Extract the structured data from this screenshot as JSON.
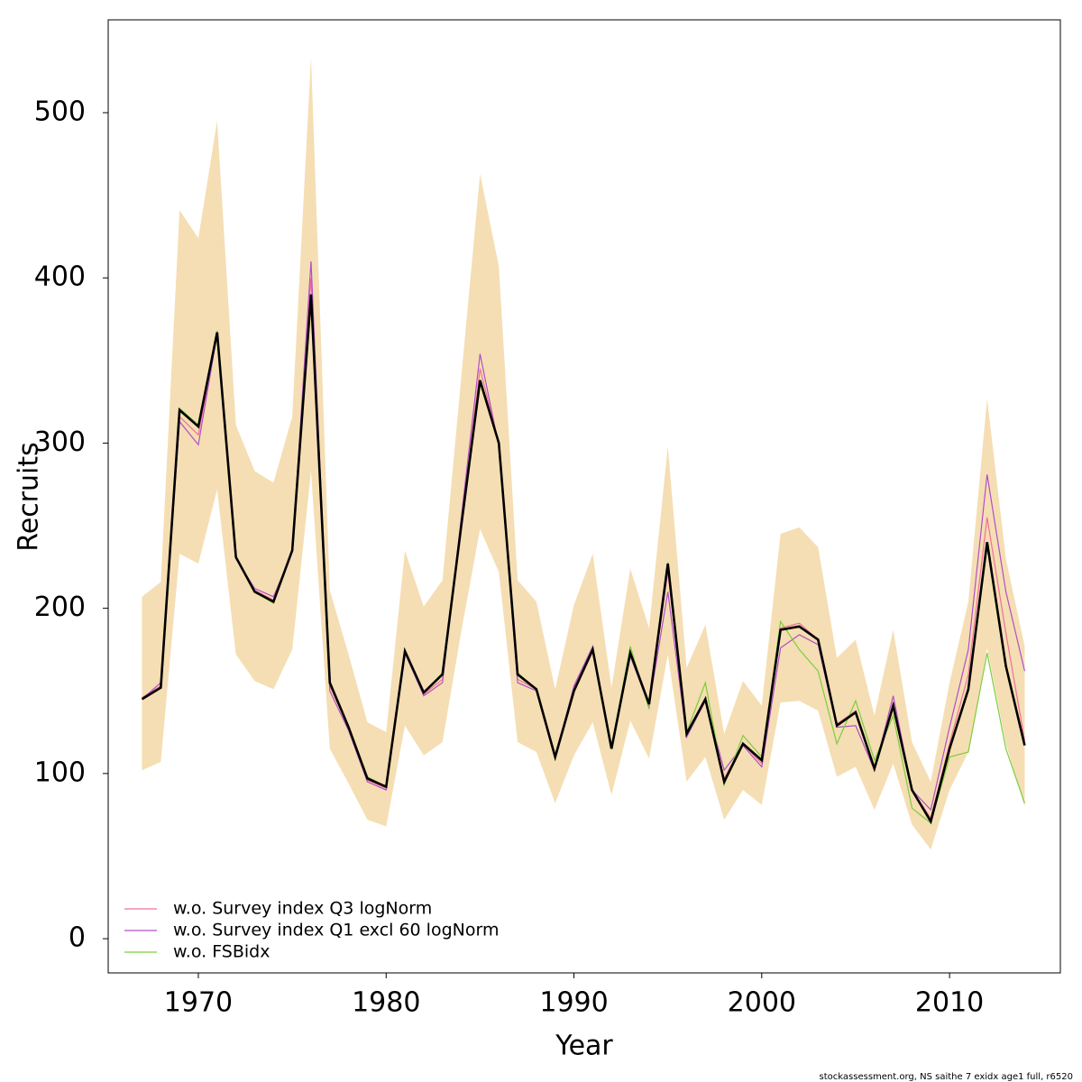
{
  "chart_data": {
    "type": "line",
    "xlabel": "Year",
    "ylabel": "Recruits",
    "footer": "stockassessment.org, NS saithe 7 exidx age1 full, r6520",
    "x": [
      1967,
      1968,
      1969,
      1970,
      1971,
      1972,
      1973,
      1974,
      1975,
      1976,
      1977,
      1978,
      1979,
      1980,
      1981,
      1982,
      1983,
      1984,
      1985,
      1986,
      1987,
      1988,
      1989,
      1990,
      1991,
      1992,
      1993,
      1994,
      1995,
      1996,
      1997,
      1998,
      1999,
      2000,
      2001,
      2002,
      2003,
      2004,
      2005,
      2006,
      2007,
      2008,
      2009,
      2010,
      2011,
      2012,
      2013,
      2014
    ],
    "band": {
      "color": "#f5deb3",
      "upper": [
        207,
        216,
        441,
        424,
        495,
        311,
        283,
        276,
        316,
        534,
        211,
        172,
        131,
        125,
        235,
        201,
        217,
        340,
        463,
        407,
        217,
        204,
        151,
        202,
        233,
        152,
        224,
        188,
        298,
        164,
        190,
        124,
        156,
        141,
        245,
        249,
        237,
        170,
        181,
        135,
        187,
        119,
        95,
        155,
        204,
        327,
        230,
        177
      ],
      "lower": [
        102,
        107,
        233,
        227,
        272,
        172,
        156,
        151,
        175,
        283,
        115,
        94,
        72,
        68,
        129,
        111,
        119,
        186,
        248,
        222,
        119,
        113,
        82,
        111,
        131,
        87,
        132,
        109,
        172,
        95,
        110,
        72,
        90,
        81,
        143,
        144,
        138,
        98,
        104,
        78,
        106,
        69,
        54,
        90,
        113,
        176,
        118,
        80
      ]
    },
    "estimate": {
      "color": "#000000",
      "values": [
        145,
        152,
        320,
        310,
        367,
        231,
        210,
        204,
        235,
        390,
        155,
        128,
        97,
        92,
        174,
        149,
        160,
        250,
        338,
        300,
        160,
        151,
        110,
        150,
        175,
        115,
        173,
        142,
        227,
        124,
        145,
        95,
        118,
        108,
        187,
        189,
        181,
        129,
        137,
        103,
        141,
        90,
        71,
        115,
        151,
        240,
        165,
        117
      ]
    },
    "series": [
      {
        "name": "w.o. Survey index Q3 logNorm",
        "color": "#f0709a",
        "values": [
          146,
          153,
          316,
          305,
          366,
          231,
          211,
          205,
          235,
          400,
          153,
          128,
          96,
          91,
          174,
          148,
          157,
          252,
          345,
          300,
          157,
          151,
          110,
          152,
          176,
          115,
          172,
          142,
          222,
          124,
          146,
          97,
          118,
          106,
          188,
          191,
          181,
          130,
          138,
          103,
          143,
          90,
          73,
          118,
          160,
          255,
          185,
          120
        ]
      },
      {
        "name": "w.o. Survey index Q1 excl 60 logNorm",
        "color": "#b050c8",
        "values": [
          145,
          155,
          313,
          299,
          366,
          230,
          212,
          207,
          234,
          410,
          150,
          126,
          95,
          90,
          173,
          147,
          155,
          255,
          354,
          298,
          155,
          150,
          110,
          153,
          177,
          115,
          171,
          141,
          210,
          122,
          144,
          102,
          117,
          104,
          176,
          184,
          178,
          128,
          129,
          102,
          147,
          90,
          78,
          128,
          175,
          281,
          210,
          162
        ]
      },
      {
        "name": "w.o. FSBidx",
        "color": "#7ccd3c",
        "values": [
          145,
          152,
          321,
          311,
          368,
          231,
          210,
          203,
          235,
          388,
          156,
          128,
          98,
          92,
          175,
          149,
          161,
          249,
          336,
          300,
          161,
          151,
          111,
          150,
          176,
          116,
          177,
          139,
          228,
          125,
          155,
          93,
          123,
          110,
          192,
          175,
          162,
          118,
          144,
          108,
          135,
          79,
          70,
          110,
          113,
          173,
          115,
          82
        ]
      }
    ],
    "xlim": [
      1965.2,
      2015.9
    ],
    "ylim": [
      -20.7,
      556.2
    ],
    "xticks": [
      1970,
      1980,
      1990,
      2000,
      2010
    ],
    "yticks": [
      0,
      100,
      200,
      300,
      400,
      500
    ],
    "legend": "bottom-left"
  }
}
